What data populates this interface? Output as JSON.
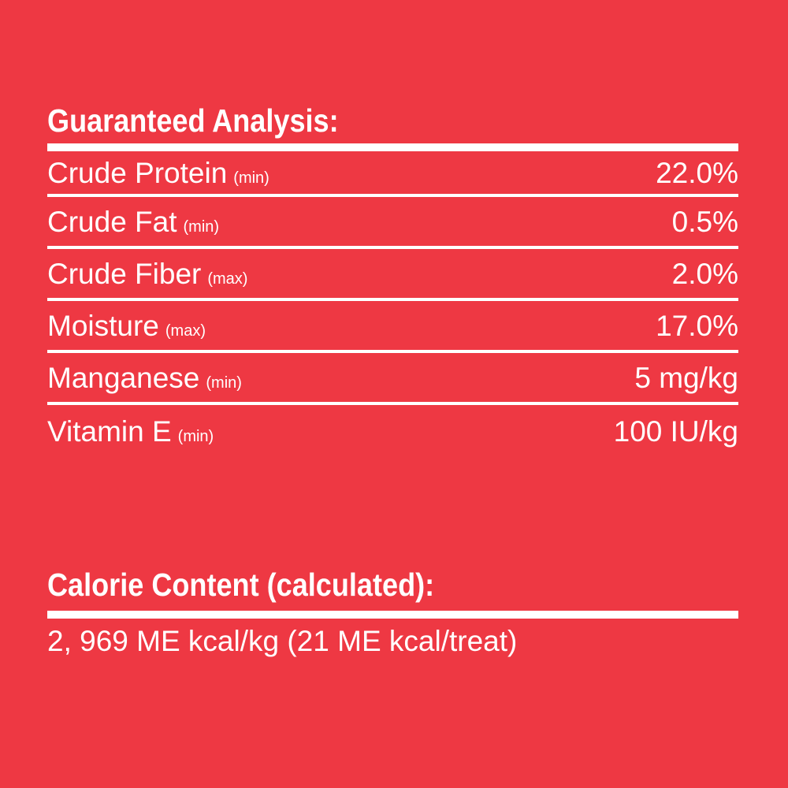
{
  "colors": {
    "background": "#EE3843",
    "text": "#FFFFFF"
  },
  "guaranteed_analysis": {
    "title": "Guaranteed Analysis:",
    "rows": [
      {
        "label": "Crude Protein",
        "qualifier": "(min)",
        "value": "22.0%"
      },
      {
        "label": "Crude Fat",
        "qualifier": "(min)",
        "value": "0.5%"
      },
      {
        "label": "Crude Fiber",
        "qualifier": "(max)",
        "value": "2.0%"
      },
      {
        "label": "Moisture",
        "qualifier": "(max)",
        "value": "17.0%"
      },
      {
        "label": "Manganese",
        "qualifier": "(min)",
        "value": "5 mg/kg"
      },
      {
        "label": "Vitamin E",
        "qualifier": "(min)",
        "value": "100 IU/kg"
      }
    ]
  },
  "calorie_content": {
    "title": "Calorie Content (calculated):",
    "value": "2, 969 ME kcal/kg (21 ME kcal/treat)"
  }
}
